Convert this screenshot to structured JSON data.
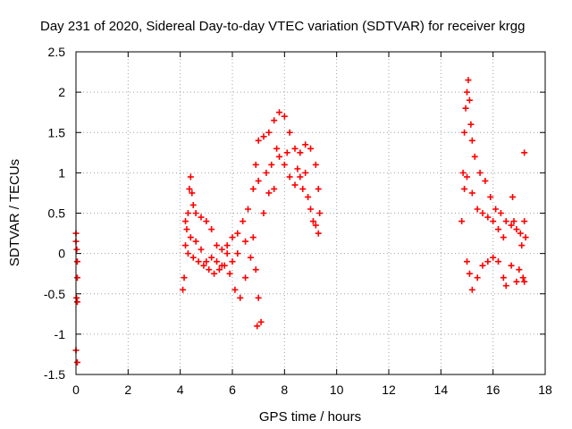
{
  "chart_data": {
    "type": "scatter",
    "title": "Day 231 of 2020, Sidereal Day-to-day VTEC variation (SDTVAR) for receiver krgg",
    "xlabel": "GPS time / hours",
    "ylabel": "SDTVAR / TECUs",
    "xlim": [
      0,
      18
    ],
    "ylim": [
      -1.5,
      2.5
    ],
    "xticks": [
      0,
      2,
      4,
      6,
      8,
      10,
      12,
      14,
      16,
      18
    ],
    "xtick_labels": [
      "0",
      "2",
      "4",
      "6",
      "8",
      "10",
      "12",
      "14",
      "16",
      "18"
    ],
    "yticks": [
      -1.5,
      -1,
      -0.5,
      0,
      0.5,
      1,
      1.5,
      2,
      2.5
    ],
    "ytick_labels": [
      "-1.5",
      "-1",
      "-0.5",
      "0",
      "0.5",
      "1",
      "1.5",
      "2",
      "2.5"
    ],
    "grid": true,
    "marker": "+",
    "color": "#ff0000",
    "series": [
      {
        "name": "SDTVAR",
        "points": [
          [
            0.0,
            0.25
          ],
          [
            0.0,
            0.15
          ],
          [
            0.05,
            -0.1
          ],
          [
            0.05,
            -0.3
          ],
          [
            0.02,
            -0.55
          ],
          [
            0.05,
            -0.6
          ],
          [
            0.0,
            -1.2
          ],
          [
            0.05,
            -1.35
          ],
          [
            0.03,
            0.05
          ],
          [
            4.1,
            -0.45
          ],
          [
            4.15,
            -0.3
          ],
          [
            4.2,
            0.1
          ],
          [
            4.25,
            0.3
          ],
          [
            4.3,
            0.5
          ],
          [
            4.35,
            0.8
          ],
          [
            4.4,
            0.95
          ],
          [
            4.45,
            0.75
          ],
          [
            4.5,
            0.6
          ],
          [
            4.6,
            0.5
          ],
          [
            4.8,
            0.45
          ],
          [
            5.0,
            0.4
          ],
          [
            5.2,
            0.3
          ],
          [
            5.4,
            0.1
          ],
          [
            5.6,
            0.05
          ],
          [
            5.8,
            0.1
          ],
          [
            6.0,
            0.2
          ],
          [
            6.2,
            0.25
          ],
          [
            6.4,
            0.4
          ],
          [
            6.6,
            0.55
          ],
          [
            6.8,
            0.8
          ],
          [
            6.9,
            1.1
          ],
          [
            7.0,
            1.4
          ],
          [
            7.2,
            1.45
          ],
          [
            7.4,
            1.5
          ],
          [
            7.6,
            1.65
          ],
          [
            7.8,
            1.75
          ],
          [
            8.0,
            1.7
          ],
          [
            8.2,
            1.5
          ],
          [
            8.4,
            1.3
          ],
          [
            8.6,
            1.25
          ],
          [
            8.8,
            1.35
          ],
          [
            9.0,
            1.3
          ],
          [
            9.2,
            1.1
          ],
          [
            9.3,
            0.8
          ],
          [
            9.35,
            0.5
          ],
          [
            4.3,
            0.0
          ],
          [
            4.5,
            -0.05
          ],
          [
            4.7,
            -0.1
          ],
          [
            4.9,
            -0.15
          ],
          [
            5.1,
            -0.2
          ],
          [
            5.3,
            -0.25
          ],
          [
            5.5,
            -0.2
          ],
          [
            5.7,
            -0.15
          ],
          [
            5.9,
            -0.25
          ],
          [
            6.1,
            -0.45
          ],
          [
            6.3,
            -0.55
          ],
          [
            6.5,
            -0.3
          ],
          [
            6.7,
            -0.05
          ],
          [
            6.8,
            0.2
          ],
          [
            6.9,
            -0.2
          ],
          [
            7.0,
            -0.55
          ],
          [
            7.1,
            -0.85
          ],
          [
            6.95,
            -0.9
          ],
          [
            7.2,
            0.5
          ],
          [
            7.4,
            0.75
          ],
          [
            7.6,
            0.8
          ],
          [
            7.8,
            1.2
          ],
          [
            8.0,
            1.1
          ],
          [
            8.2,
            0.95
          ],
          [
            8.4,
            0.85
          ],
          [
            8.6,
            0.95
          ],
          [
            8.8,
            1.0
          ],
          [
            9.0,
            0.55
          ],
          [
            9.2,
            0.35
          ],
          [
            9.3,
            0.25
          ],
          [
            9.1,
            0.4
          ],
          [
            8.9,
            0.7
          ],
          [
            8.7,
            0.8
          ],
          [
            4.2,
            0.4
          ],
          [
            4.4,
            0.2
          ],
          [
            4.6,
            0.15
          ],
          [
            4.8,
            0.05
          ],
          [
            5.0,
            -0.1
          ],
          [
            5.2,
            -0.05
          ],
          [
            5.4,
            -0.1
          ],
          [
            5.6,
            -0.15
          ],
          [
            5.8,
            0.0
          ],
          [
            6.0,
            -0.1
          ],
          [
            6.2,
            0.0
          ],
          [
            6.5,
            0.15
          ],
          [
            7.0,
            0.9
          ],
          [
            7.3,
            1.0
          ],
          [
            7.5,
            1.1
          ],
          [
            7.7,
            1.3
          ],
          [
            8.1,
            1.25
          ],
          [
            8.5,
            1.05
          ],
          [
            14.8,
            0.4
          ],
          [
            14.85,
            1.0
          ],
          [
            14.9,
            1.5
          ],
          [
            14.95,
            1.8
          ],
          [
            15.0,
            2.0
          ],
          [
            15.05,
            2.15
          ],
          [
            15.1,
            1.9
          ],
          [
            15.15,
            1.6
          ],
          [
            15.2,
            1.4
          ],
          [
            15.3,
            1.2
          ],
          [
            15.5,
            1.0
          ],
          [
            15.7,
            0.9
          ],
          [
            15.9,
            0.7
          ],
          [
            16.1,
            0.55
          ],
          [
            16.3,
            0.5
          ],
          [
            16.5,
            0.4
          ],
          [
            16.7,
            0.35
          ],
          [
            14.9,
            0.8
          ],
          [
            15.0,
            0.95
          ],
          [
            15.2,
            0.75
          ],
          [
            15.4,
            0.55
          ],
          [
            15.6,
            0.5
          ],
          [
            15.8,
            0.45
          ],
          [
            16.0,
            0.4
          ],
          [
            16.2,
            0.3
          ],
          [
            16.4,
            0.2
          ],
          [
            15.0,
            -0.1
          ],
          [
            15.1,
            -0.25
          ],
          [
            15.2,
            -0.45
          ],
          [
            15.4,
            -0.3
          ],
          [
            15.6,
            -0.15
          ],
          [
            15.8,
            -0.1
          ],
          [
            16.0,
            -0.05
          ],
          [
            16.2,
            -0.1
          ],
          [
            16.4,
            -0.3
          ],
          [
            16.5,
            -0.4
          ],
          [
            16.7,
            -0.15
          ],
          [
            16.8,
            0.4
          ],
          [
            16.75,
            0.7
          ],
          [
            16.9,
            -0.35
          ],
          [
            17.0,
            -0.2
          ],
          [
            17.1,
            0.1
          ],
          [
            17.2,
            0.4
          ],
          [
            17.25,
            0.2
          ],
          [
            17.15,
            -0.3
          ],
          [
            17.2,
            -0.35
          ],
          [
            16.9,
            0.3
          ],
          [
            17.05,
            0.25
          ],
          [
            17.2,
            1.25
          ]
        ]
      }
    ]
  }
}
